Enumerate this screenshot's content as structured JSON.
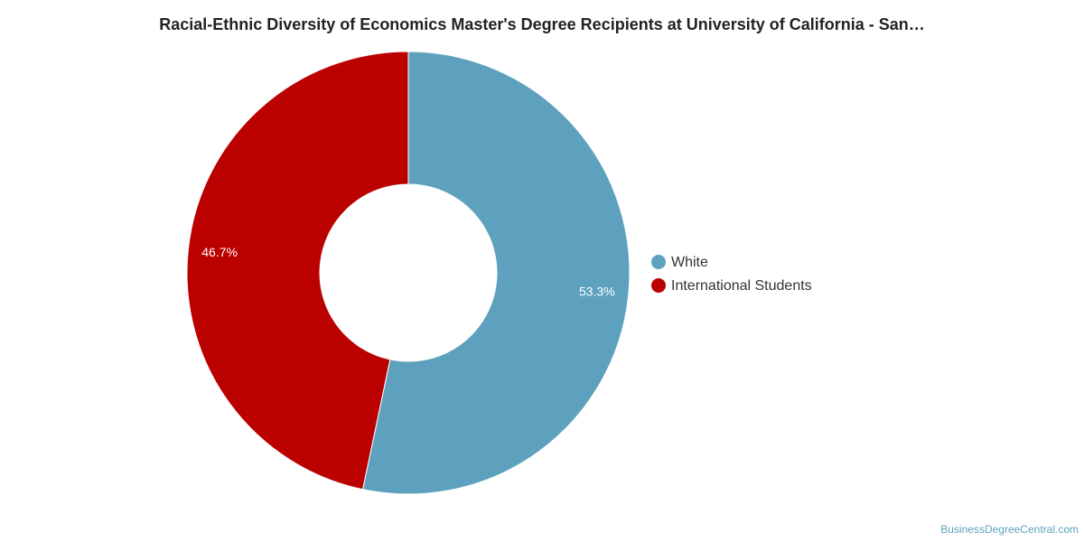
{
  "chart_data": {
    "type": "donut",
    "title": "Racial-Ethnic Diversity of Economics Master's Degree Recipients at University of California - San…",
    "series": [
      {
        "name": "White",
        "color": "#5ea1bf",
        "values": [
          53.3
        ],
        "value_labels": [
          "53.3%"
        ]
      },
      {
        "name": "International Students",
        "color": "#bb0000",
        "values": [
          46.7
        ],
        "value_labels": [
          "46.7%"
        ]
      }
    ],
    "legend": "right",
    "source": "BusinessDegreeCentral.com"
  }
}
